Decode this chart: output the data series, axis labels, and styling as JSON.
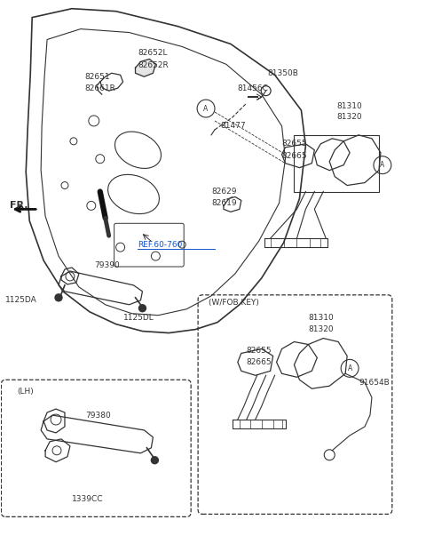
{
  "bg_color": "#ffffff",
  "line_color": "#333333",
  "figsize": [
    4.8,
    6.03
  ],
  "dpi": 100,
  "xlim": [
    0,
    4.8
  ],
  "ylim": [
    0,
    6.03
  ]
}
